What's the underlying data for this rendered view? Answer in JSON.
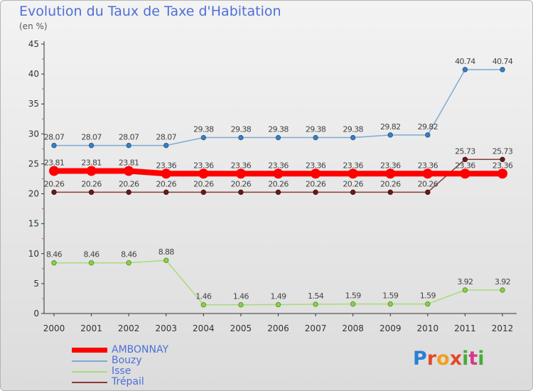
{
  "header": {
    "title": "Evolution du Taux de Taxe d'Habitation",
    "subtitle": "(en %)"
  },
  "logo_text": "Proxiti",
  "chart_data": {
    "type": "line",
    "title": "Evolution du Taux de Taxe d'Habitation",
    "subtitle": "(en %)",
    "x": [
      "2000",
      "2001",
      "2002",
      "2003",
      "2004",
      "2005",
      "2006",
      "2007",
      "2008",
      "2009",
      "2010",
      "2011",
      "2012"
    ],
    "ylim": [
      0,
      45
    ],
    "yticks": [
      0,
      5,
      10,
      15,
      20,
      25,
      30,
      35,
      40,
      45
    ],
    "grid": false,
    "legend_position": "bottom-left",
    "series": [
      {
        "name": "AMBONNAY",
        "color": "#ff0000",
        "values": [
          23.81,
          23.81,
          23.81,
          23.36,
          23.36,
          23.36,
          23.36,
          23.36,
          23.36,
          23.36,
          23.36,
          23.36,
          23.36
        ],
        "labels": [
          "23.81",
          "23.81",
          "23.81",
          "23.36",
          "23.36",
          "23.36",
          "23.36",
          "23.36",
          "23.36",
          "23.36",
          "23.36",
          "23.36",
          "23.36"
        ]
      },
      {
        "name": "Bouzy",
        "color": "#7eaad4",
        "values": [
          28.07,
          28.07,
          28.07,
          28.07,
          29.38,
          29.38,
          29.38,
          29.38,
          29.38,
          29.82,
          29.82,
          40.74,
          40.74
        ],
        "labels": [
          "28.07",
          "28.07",
          "28.07",
          "28.07",
          "29.38",
          "29.38",
          "29.38",
          "29.38",
          "29.38",
          "29.82",
          "29.82",
          "40.74",
          "40.74"
        ]
      },
      {
        "name": "Isse",
        "color": "#a8dc7a",
        "values": [
          8.46,
          8.46,
          8.46,
          8.88,
          1.46,
          1.46,
          1.49,
          1.54,
          1.59,
          1.59,
          1.59,
          3.92,
          3.92
        ],
        "labels": [
          "8.46",
          "8.46",
          "8.46",
          "8.88",
          "1.46",
          "1.46",
          "1.49",
          "1.54",
          "1.59",
          "1.59",
          "1.59",
          "3.92",
          "3.92"
        ]
      },
      {
        "name": "Trépail",
        "color": "#8a3a3a",
        "values": [
          20.26,
          20.26,
          20.26,
          20.26,
          20.26,
          20.26,
          20.26,
          20.26,
          20.26,
          20.26,
          20.26,
          25.73,
          25.73
        ],
        "labels": [
          "20.26",
          "20.26",
          "20.26",
          "20.26",
          "20.26",
          "20.26",
          "20.26",
          "20.26",
          "20.26",
          "20.26",
          "20.26",
          "25.73",
          "25.73"
        ]
      }
    ]
  }
}
